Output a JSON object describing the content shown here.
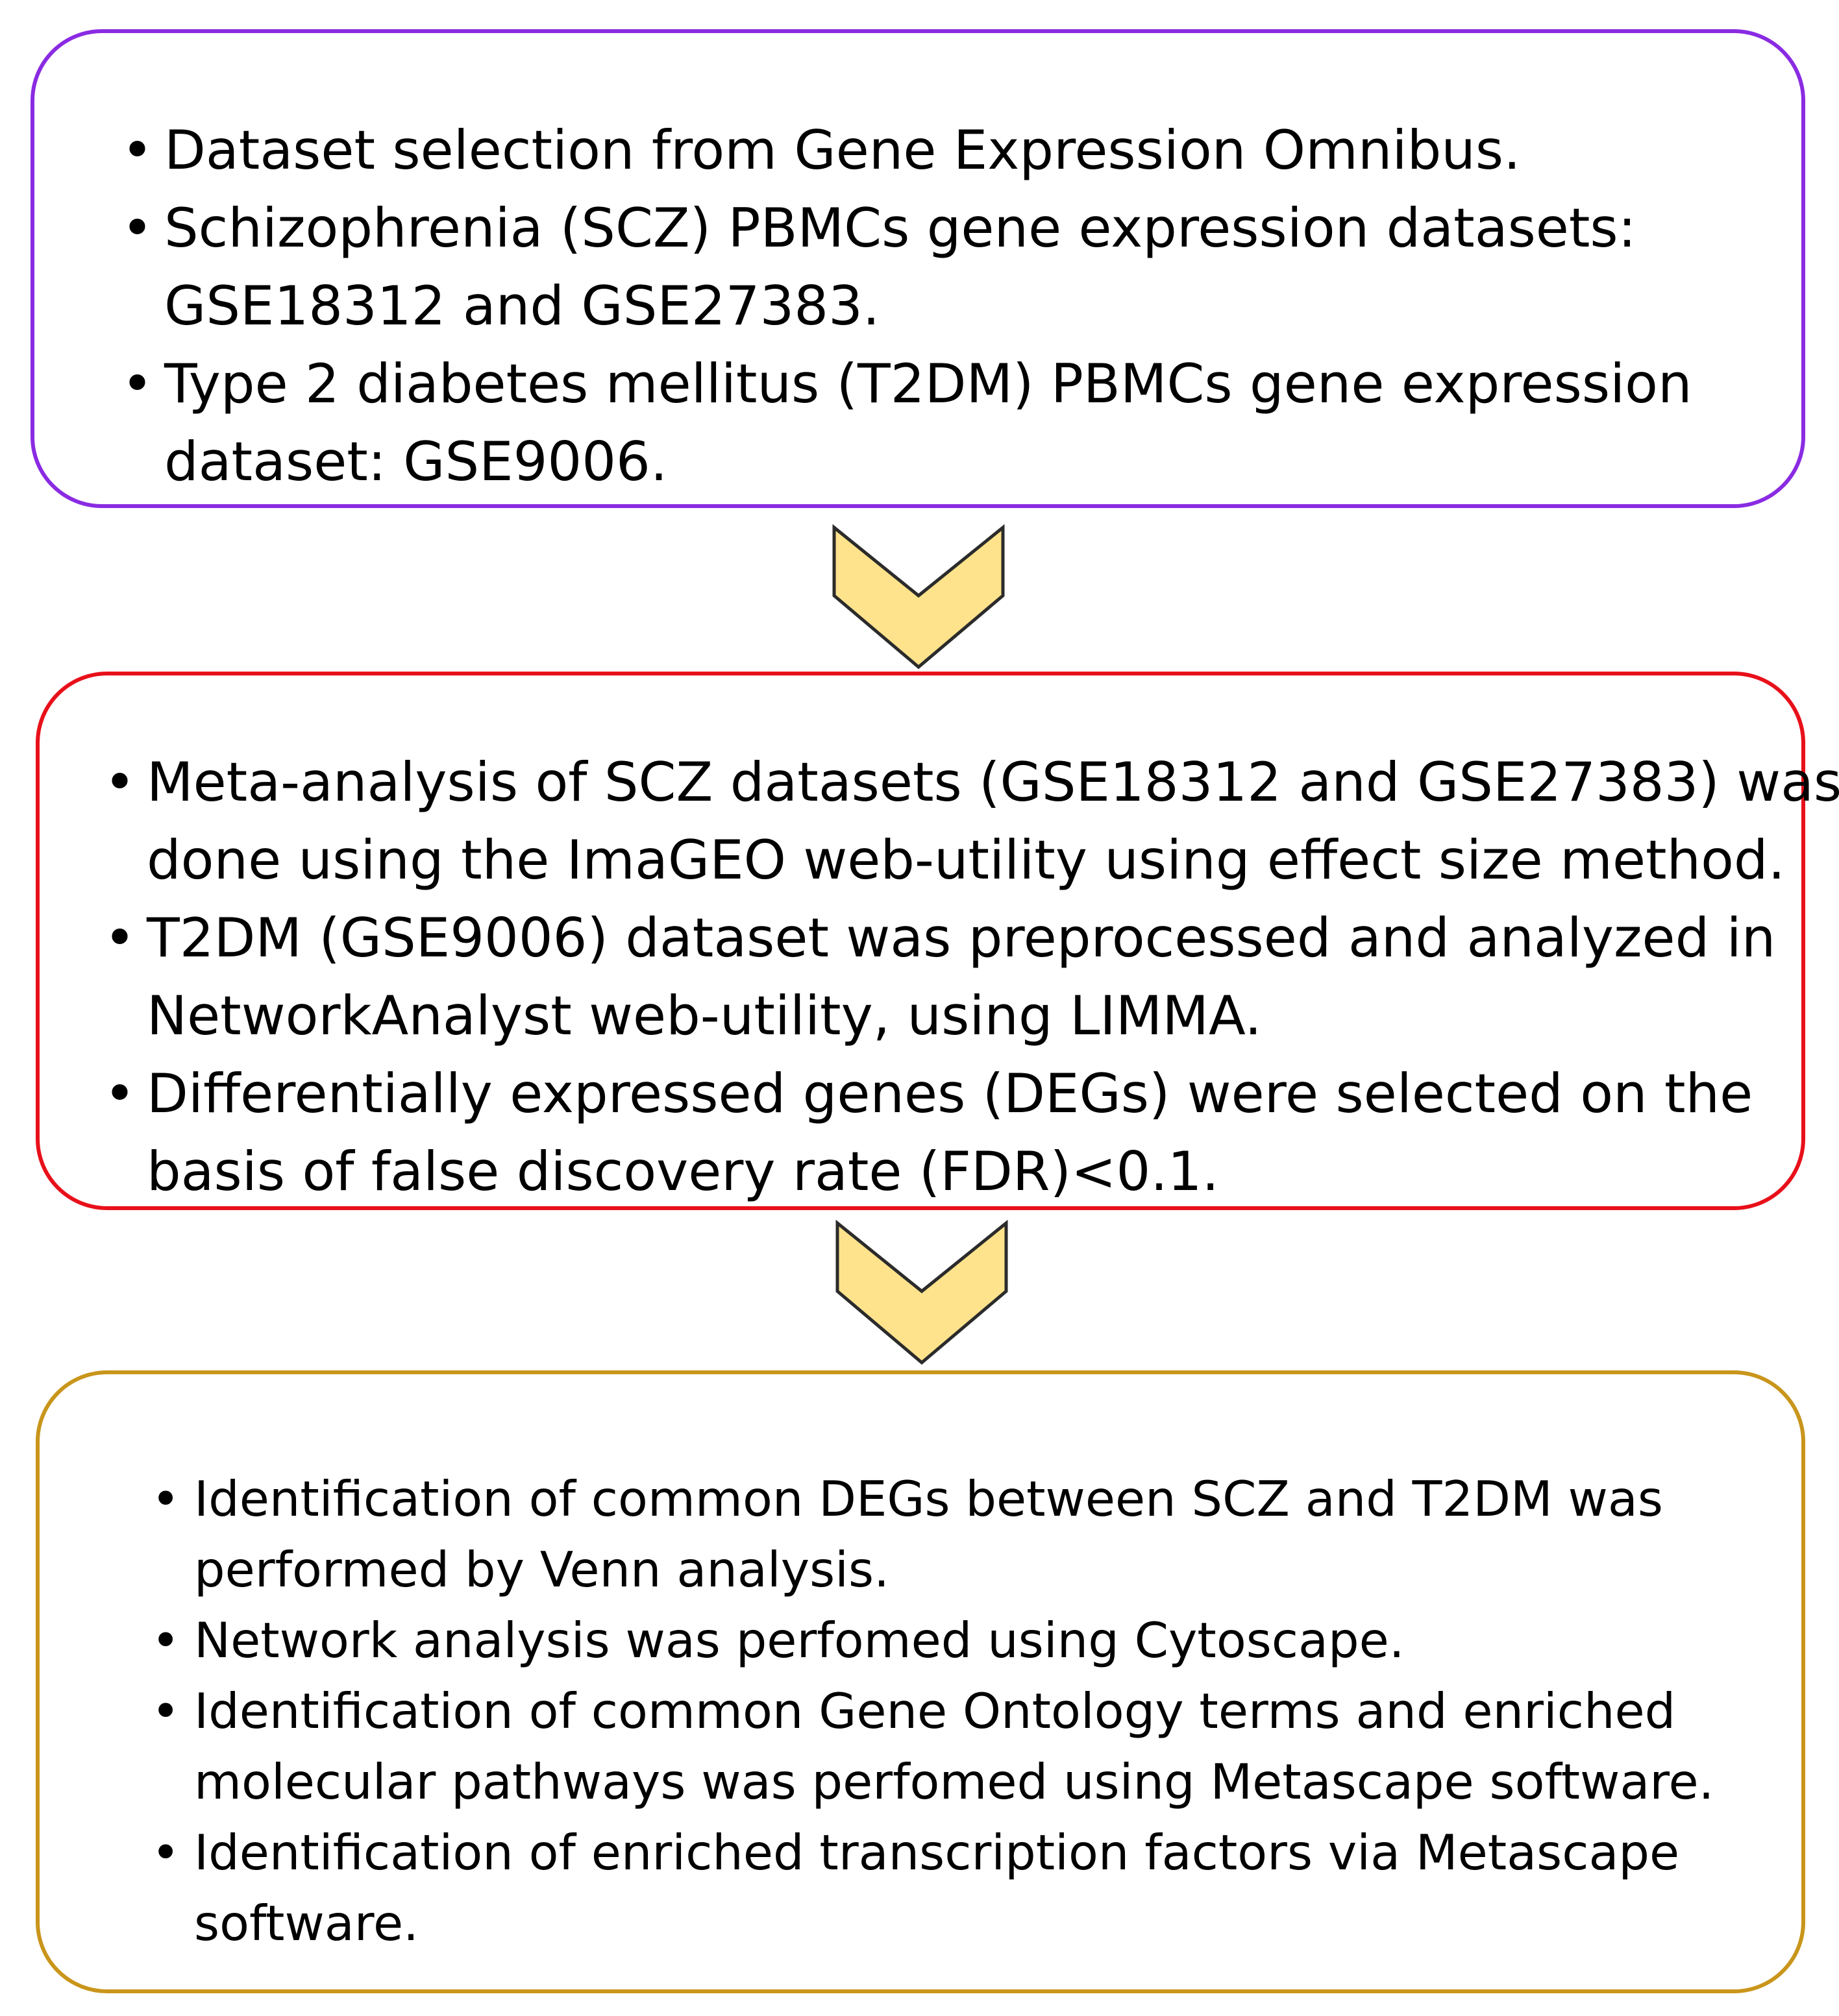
{
  "colors": {
    "box1_border": "#8A2BE2",
    "box2_border": "#E8101A",
    "box3_border": "#C9951B",
    "arrow_fill": "#FFE38C",
    "arrow_stroke": "#2B2B2B"
  },
  "boxes": [
    {
      "items": [
        {
          "lines": [
            "Dataset selection from Gene Expression Omnibus."
          ]
        },
        {
          "lines": [
            "Schizophrenia (SCZ) PBMCs gene expression datasets:",
            "GSE18312 and GSE27383."
          ]
        },
        {
          "lines": [
            "Type 2 diabetes mellitus (T2DM) PBMCs gene expression",
            "dataset: GSE9006."
          ]
        }
      ]
    },
    {
      "items": [
        {
          "lines": [
            "Meta-analysis of SCZ datasets (GSE18312 and GSE27383) was",
            "done using the ImaGEO web-utility using effect size method."
          ]
        },
        {
          "lines": [
            "T2DM (GSE9006) dataset was preprocessed and analyzed in",
            "NetworkAnalyst web-utility, using LIMMA."
          ]
        },
        {
          "lines": [
            "Differentially expressed genes (DEGs) were selected on the",
            "basis of false discovery rate (FDR)<0.1."
          ]
        }
      ]
    },
    {
      "items": [
        {
          "lines": [
            "Identification of common DEGs between SCZ and T2DM was",
            "performed by Venn analysis."
          ]
        },
        {
          "lines": [
            "Network analysis was perfomed using Cytoscape."
          ]
        },
        {
          "lines": [
            "Identification of common Gene Ontology  terms and enriched",
            "molecular pathways was perfomed using Metascape software."
          ]
        },
        {
          "lines": [
            "Identification of enriched transcription factors via Metascape",
            "software."
          ]
        }
      ]
    }
  ]
}
